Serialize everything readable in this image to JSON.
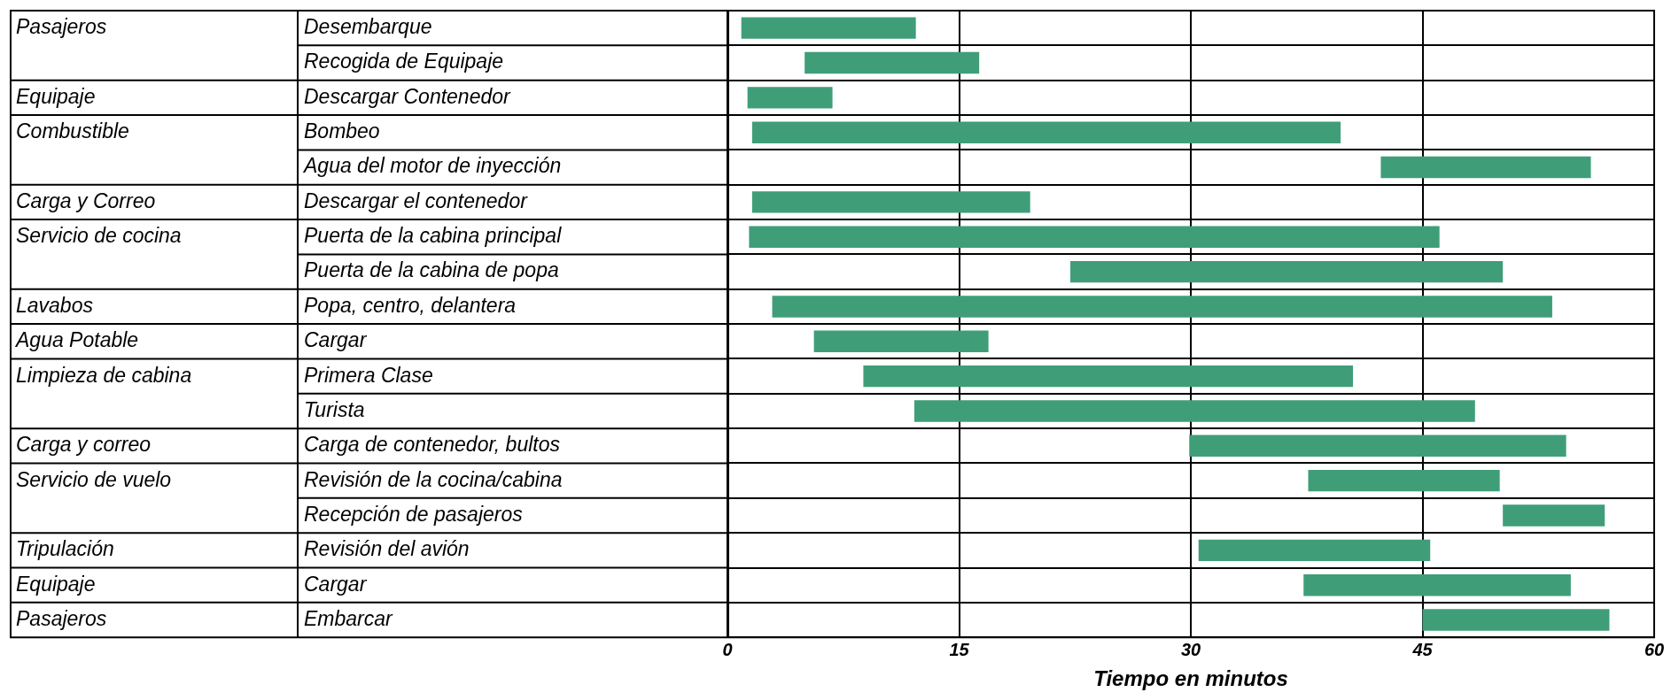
{
  "chart_data": {
    "type": "bar",
    "orientation": "horizontal",
    "xlabel": "Tiempo en minutos",
    "categories": [
      "Desembarque",
      "Recogida de Equipaje",
      "Descargar Contenedor",
      "Bombeo",
      "Agua del motor de inyección",
      "Descargar el contenedor",
      "Puerta de la cabina principal",
      "Puerta de la cabina de popa",
      "Popa, centro, delantera",
      "Cargar",
      "Primera Clase",
      "Turista",
      "Carga de contenedor, bultos",
      "Revisión de la cocina/cabina",
      "Recepción de pasajeros",
      "Revisión del avión",
      "Cargar",
      "Embarcar"
    ],
    "base": [
      0.9,
      5.0,
      1.3,
      1.6,
      42.3,
      1.6,
      1.4,
      22.2,
      2.9,
      5.6,
      8.8,
      12.1,
      29.9,
      37.6,
      50.2,
      30.5,
      37.3,
      45.0
    ],
    "values": [
      11.3,
      11.3,
      5.5,
      38.1,
      13.6,
      18.0,
      44.7,
      28.0,
      50.5,
      11.3,
      31.7,
      36.3,
      24.4,
      12.4,
      6.6,
      15.0,
      17.3,
      12.1
    ],
    "color": "#3f9e78",
    "xlim": [
      0,
      60
    ],
    "xticks": [
      0,
      15,
      30,
      45,
      60
    ],
    "grid": true,
    "legend": false,
    "annotations": [
      "Pasajeros",
      null,
      "Equipaje",
      "Combustible",
      null,
      "Carga y Correo",
      "Servicio de cocina",
      null,
      "Lavabos",
      "Agua Potable",
      "Limpieza de cabina",
      null,
      "Carga y correo",
      "Servicio de vuelo",
      null,
      "Tripulación",
      "Equipaje",
      "Pasajeros"
    ]
  }
}
